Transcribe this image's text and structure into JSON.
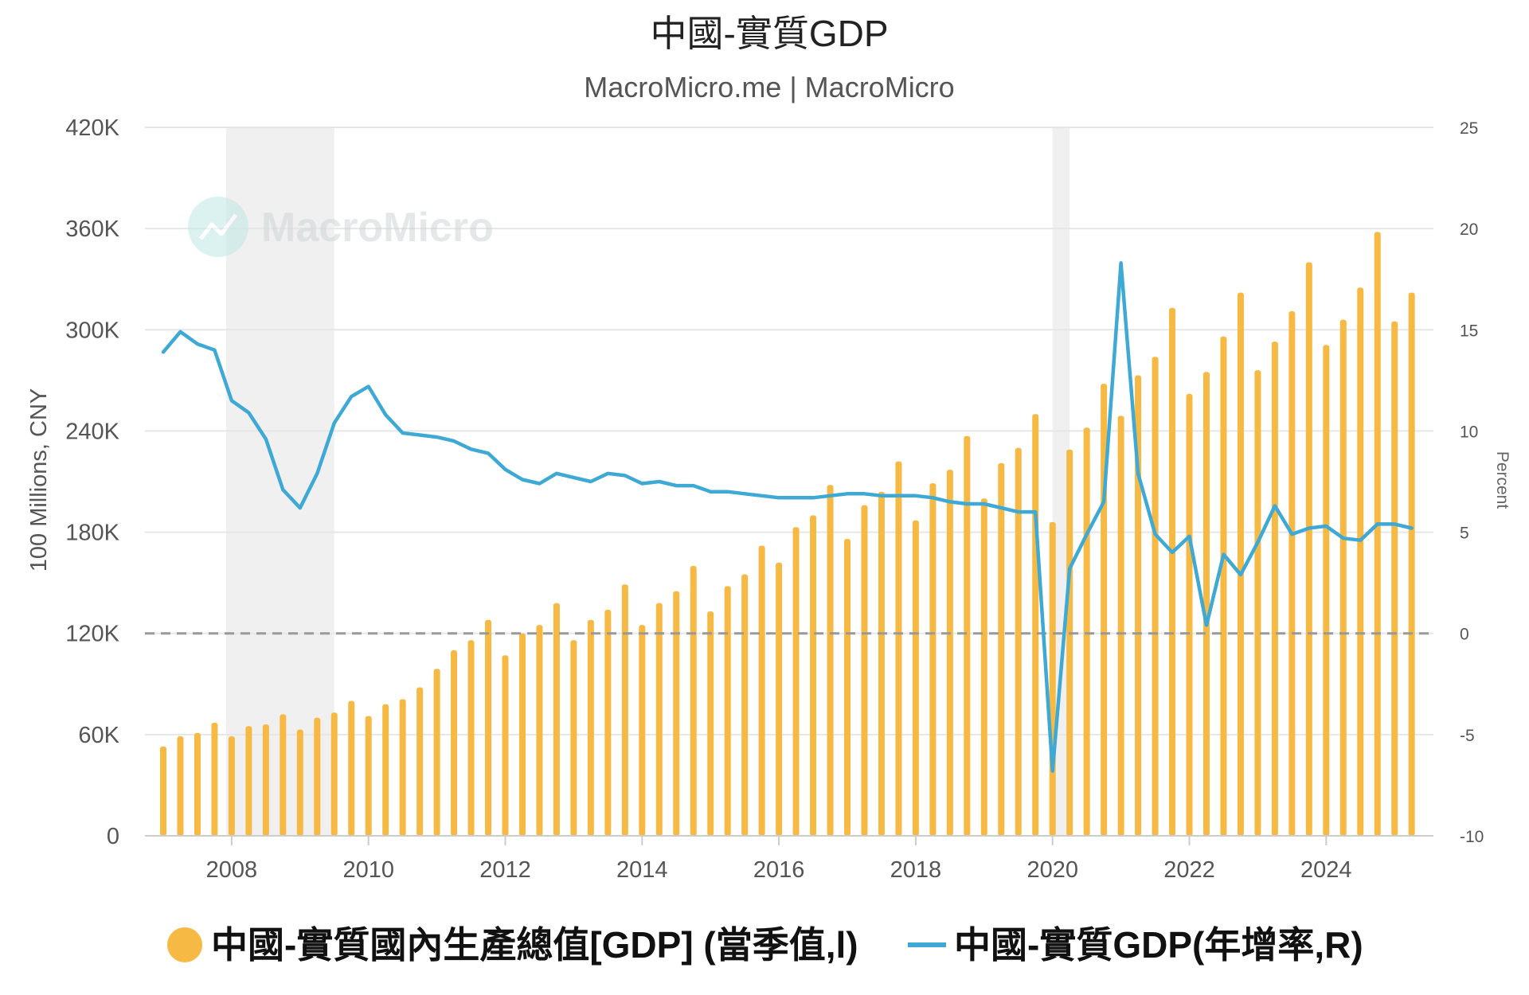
{
  "chart_data": {
    "type": "bar",
    "title": "中國-實質GDP",
    "subtitle": "MacroMicro.me | MacroMicro",
    "watermark": "MacroMicro",
    "ylabel_left": "100 Millions, CNY",
    "ylabel_right": "Percent",
    "ylim_left": [
      0,
      420000
    ],
    "ylim_right": [
      -10,
      25
    ],
    "x_range": [
      2007.0,
      2025.3
    ],
    "left_ticks": [
      "0",
      "60K",
      "120K",
      "180K",
      "240K",
      "300K",
      "360K",
      "420K"
    ],
    "left_tick_values": [
      0,
      60000,
      120000,
      180000,
      240000,
      300000,
      360000,
      420000
    ],
    "right_ticks": [
      "-10",
      "-5",
      "0",
      "5",
      "10",
      "15",
      "20",
      "25"
    ],
    "right_tick_values": [
      -10,
      -5,
      0,
      5,
      10,
      15,
      20,
      25
    ],
    "x_ticks": [
      "2008",
      "2010",
      "2012",
      "2014",
      "2016",
      "2018",
      "2020",
      "2022",
      "2024"
    ],
    "x_tick_values": [
      2008,
      2010,
      2012,
      2014,
      2016,
      2018,
      2020,
      2022,
      2024
    ],
    "zero_line_right": 0,
    "grid": true,
    "legend_position": "bottom",
    "recession_shading": [
      [
        2007.92,
        2009.5
      ],
      [
        2020.0,
        2020.25
      ]
    ],
    "colors": {
      "bars": "#f6b943",
      "line": "#3fa9d6",
      "shade": "#f0f0f0",
      "grid": "#e6e6e6",
      "zero": "#999999"
    },
    "x": [
      2007.0,
      2007.25,
      2007.5,
      2007.75,
      2008.0,
      2008.25,
      2008.5,
      2008.75,
      2009.0,
      2009.25,
      2009.5,
      2009.75,
      2010.0,
      2010.25,
      2010.5,
      2010.75,
      2011.0,
      2011.25,
      2011.5,
      2011.75,
      2012.0,
      2012.25,
      2012.5,
      2012.75,
      2013.0,
      2013.25,
      2013.5,
      2013.75,
      2014.0,
      2014.25,
      2014.5,
      2014.75,
      2015.0,
      2015.25,
      2015.5,
      2015.75,
      2016.0,
      2016.25,
      2016.5,
      2016.75,
      2017.0,
      2017.25,
      2017.5,
      2017.75,
      2018.0,
      2018.25,
      2018.5,
      2018.75,
      2019.0,
      2019.25,
      2019.5,
      2019.75,
      2020.0,
      2020.25,
      2020.5,
      2020.75,
      2021.0,
      2021.25,
      2021.5,
      2021.75,
      2022.0,
      2022.25,
      2022.5,
      2022.75,
      2023.0,
      2023.25,
      2023.5,
      2023.75,
      2024.0,
      2024.25,
      2024.5,
      2024.75,
      2025.0,
      2025.25
    ],
    "series": [
      {
        "name": "中國-實質國內生產總值[GDP] (當季值,l)",
        "type": "bar",
        "axis": "left",
        "values": [
          53000,
          59000,
          61000,
          67000,
          59000,
          65000,
          66000,
          72000,
          63000,
          70000,
          73000,
          80000,
          71000,
          78000,
          81000,
          88000,
          99000,
          110000,
          116000,
          128000,
          107000,
          120000,
          125000,
          138000,
          116000,
          128000,
          134000,
          149000,
          125000,
          138000,
          145000,
          160000,
          133000,
          148000,
          155000,
          172000,
          162000,
          183000,
          190000,
          208000,
          176000,
          196000,
          204000,
          222000,
          187000,
          209000,
          217000,
          237000,
          200000,
          221000,
          230000,
          250000,
          186000,
          229000,
          242000,
          268000,
          249000,
          273000,
          284000,
          313000,
          262000,
          275000,
          296000,
          322000,
          276000,
          293000,
          311000,
          340000,
          291000,
          306000,
          325000,
          358000,
          305000,
          322000
        ]
      },
      {
        "name": "中國-實質GDP(年增率,R)",
        "type": "line",
        "axis": "right",
        "values": [
          13.9,
          14.9,
          14.3,
          14.0,
          11.5,
          10.9,
          9.6,
          7.1,
          6.2,
          7.9,
          10.4,
          11.7,
          12.2,
          10.8,
          9.9,
          9.8,
          9.7,
          9.5,
          9.1,
          8.9,
          8.1,
          7.6,
          7.4,
          7.9,
          7.7,
          7.5,
          7.9,
          7.8,
          7.4,
          7.5,
          7.3,
          7.3,
          7.0,
          7.0,
          6.9,
          6.8,
          6.7,
          6.7,
          6.7,
          6.8,
          6.9,
          6.9,
          6.8,
          6.8,
          6.8,
          6.7,
          6.5,
          6.4,
          6.4,
          6.2,
          6.0,
          6.0,
          -6.8,
          3.2,
          4.9,
          6.5,
          18.3,
          7.9,
          4.9,
          4.0,
          4.8,
          0.4,
          3.9,
          2.9,
          4.5,
          6.3,
          4.9,
          5.2,
          5.3,
          4.7,
          4.6,
          5.4,
          5.4,
          5.2
        ]
      }
    ]
  }
}
